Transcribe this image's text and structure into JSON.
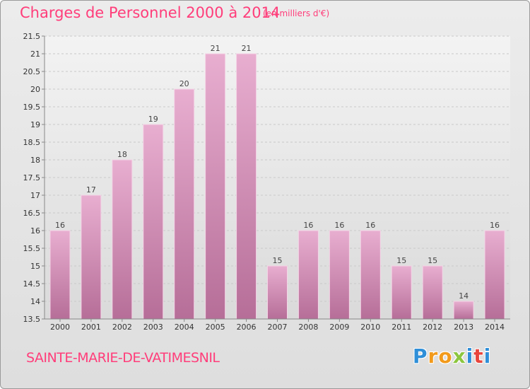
{
  "header": {
    "title": "Charges de Personnel 2000 à 2014",
    "subtitle": "(en milliers d'€)"
  },
  "footer": {
    "city": "SAINTE-MARIE-DE-VATIMESNIL",
    "logo_letters": [
      "P",
      "r",
      "o",
      "x",
      "i",
      "t",
      "i"
    ],
    "logo_colors": [
      "#2f8fd8",
      "#f29a1b",
      "#f29a1b",
      "#8cc63f",
      "#2f8fd8",
      "#e8453c",
      "#2f8fd8"
    ]
  },
  "colors": {
    "bar_top": "#e8aed0",
    "bar_bottom": "#b66e98",
    "bar_stroke": "#f4d4e6",
    "grid": "#c9c9c9",
    "axis": "#888888",
    "plot_bg_top": "#f3f3f3",
    "plot_bg_bottom": "#dadada"
  },
  "chart_data": {
    "type": "bar",
    "title": "Charges de Personnel 2000 à 2014",
    "subtitle": "(en milliers d'€)",
    "categories": [
      "2000",
      "2001",
      "2002",
      "2003",
      "2004",
      "2005",
      "2006",
      "2007",
      "2008",
      "2009",
      "2010",
      "2011",
      "2012",
      "2013",
      "2014"
    ],
    "values": [
      16,
      17,
      18,
      19,
      20,
      21,
      21,
      15,
      16,
      16,
      16,
      15,
      15,
      14,
      16
    ],
    "data_labels": [
      "16",
      "17",
      "18",
      "19",
      "20",
      "21",
      "21",
      "15",
      "16",
      "16",
      "16",
      "15",
      "15",
      "14",
      "16"
    ],
    "ylim": [
      13.5,
      21.5
    ],
    "yticks": [
      13.5,
      14,
      14.5,
      15,
      15.5,
      16,
      16.5,
      17,
      17.5,
      18,
      18.5,
      19,
      19.5,
      20,
      20.5,
      21,
      21.5
    ],
    "ytick_labels": [
      "13.5",
      "14",
      "14.5",
      "15",
      "15.5",
      "16",
      "16.5",
      "17",
      "17.5",
      "18",
      "18.5",
      "19",
      "19.5",
      "20",
      "20.5",
      "21",
      "21.5"
    ],
    "grid": true,
    "legend": "none"
  }
}
